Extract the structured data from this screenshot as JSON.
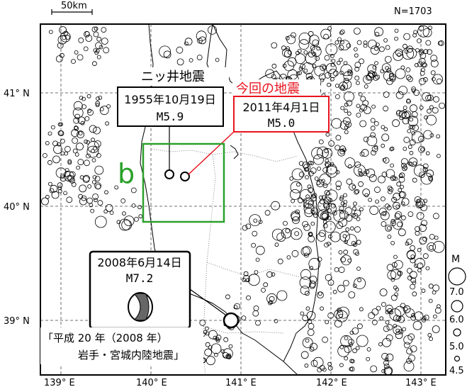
{
  "header": {
    "scale_label": "50km",
    "count_label": "N=1703"
  },
  "axes": {
    "lat_labels": [
      "41° N",
      "40° N",
      "39° N"
    ],
    "lon_labels": [
      "139° E",
      "140° E",
      "141° E",
      "142° E",
      "143° E"
    ]
  },
  "legend": {
    "title": "M",
    "labels": [
      "7.0",
      "6.0",
      "5.0",
      "4.5"
    ]
  },
  "annotations": {
    "niitsui_title": "ニッ井地震",
    "niitsui_date": "1955年10月19日",
    "niitsui_mag": "M5.9",
    "current_title": "今回の地震",
    "current_date": "2011年4月1日",
    "current_mag": "M5.0",
    "region_label": "b",
    "iwate_date": "2008年6月14日",
    "iwate_mag": "M7.2",
    "iwate_caption_1": "「平成 20 年（2008 年）",
    "iwate_caption_2": "岩手・宮城内陸地震」"
  },
  "colors": {
    "region_box": "#2aa02a",
    "highlight": "#e8141e",
    "marker": "#000000"
  },
  "map_data": {
    "projection": "lat-lon",
    "lon_range": [
      138.8,
      143.2
    ],
    "lat_range": [
      38.6,
      41.7
    ],
    "grid": true,
    "events_count": 1703,
    "featured_events": [
      {
        "name": "niitsui",
        "lon": 140.3,
        "lat": 40.22,
        "mag": 5.9
      },
      {
        "name": "current",
        "lon": 140.45,
        "lat": 40.22,
        "mag": 5.0
      },
      {
        "name": "iwate-miyagi",
        "lon": 140.88,
        "lat": 39.02,
        "mag": 7.2
      }
    ]
  }
}
